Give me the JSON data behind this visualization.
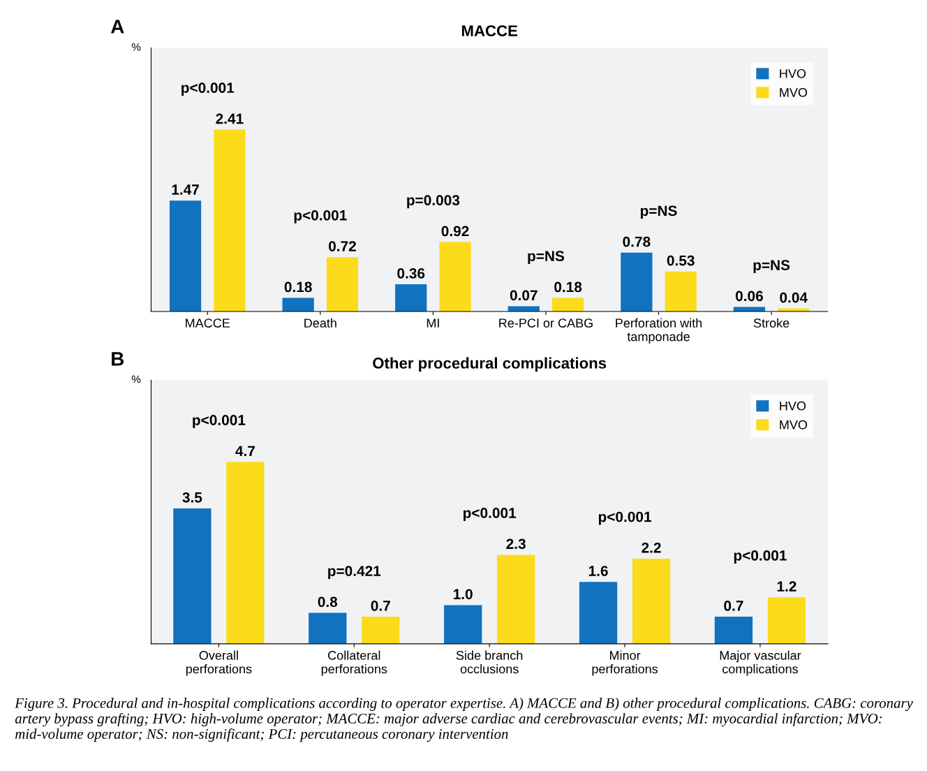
{
  "chart_data": [
    {
      "type": "bar",
      "title": "MACCE",
      "ylabel": "%",
      "data_labels": true,
      "legend": "top right",
      "grid": false,
      "categories": [
        "MACCE",
        "Death",
        "MI",
        "Re-PCI or CABG",
        "Perforation with\ntamponade",
        "Stroke"
      ],
      "series": [
        {
          "name": "HVO",
          "color": "#1172bf",
          "values": [
            1.47,
            0.18,
            0.36,
            0.07,
            0.78,
            0.06
          ]
        },
        {
          "name": "MVO",
          "color": "#fcdc1a",
          "values": [
            2.41,
            0.72,
            0.92,
            0.18,
            0.53,
            0.04
          ]
        }
      ],
      "annotations": [
        "A",
        "p<0.001",
        "p<0.001",
        "p=0.003",
        "p=NS",
        "p=NS",
        "p=NS"
      ]
    },
    {
      "type": "bar",
      "title": "Other procedural complications",
      "ylabel": "%",
      "data_labels": true,
      "legend": "top right",
      "grid": false,
      "categories": [
        "Overall\nperforations",
        "Collateral\nperforations",
        "Side branch\nocclusions",
        "Minor\nperforations",
        "Major vascular\ncomplications"
      ],
      "series": [
        {
          "name": "HVO",
          "color": "#1172bf",
          "values": [
            3.5,
            0.8,
            1.0,
            1.6,
            0.7
          ],
          "value_labels": [
            "3.5",
            "0.8",
            "1.0",
            "1.6",
            "0.7"
          ]
        },
        {
          "name": "MVO",
          "color": "#fcdc1a",
          "values": [
            4.7,
            0.7,
            2.3,
            2.2,
            1.2
          ],
          "value_labels": [
            "4.7",
            "0.7",
            "2.3",
            "2.2",
            "1.2"
          ]
        }
      ],
      "annotations": [
        "B",
        "p<0.001",
        "p=0.421",
        "p<0.001",
        "p<0.001",
        "p<0.001",
        "Figure 3. Procedural and in-hospital complications according to operator expertise. A) MACCE and B) other procedural complications. CABG: coronary artery bypass grafting; HVO: high-volume operator; MACCE: major adverse cardiac and cerebrovascular events; MI: myocardial infarction; MVO: mid-volume operator; NS: non-significant; PCI: percutaneous coronary intervention"
      ]
    }
  ]
}
